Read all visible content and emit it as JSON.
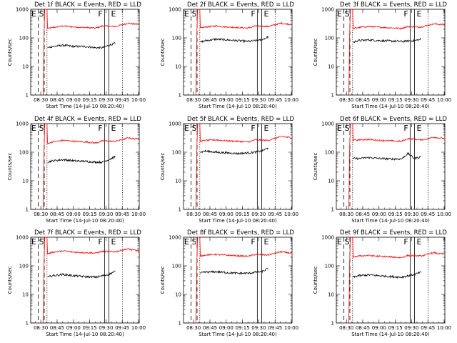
{
  "shared": {
    "xlabel": "Start Time (14-Jul-10 08:20:40)",
    "ylabel": "Counts/sec",
    "x_tick_labels": [
      "08:30",
      "08:45",
      "09:00",
      "09:15",
      "09:30",
      "09:45",
      "10:00"
    ],
    "y_tick_labels": [
      "1",
      "10",
      "100",
      "1000"
    ],
    "markers": {
      "E": "E",
      "S": "S",
      "F": "F"
    },
    "colors": {
      "events": "#000000",
      "lld": "#ff0000"
    }
  },
  "chart_data": [
    {
      "type": "line",
      "title": "Det 1f BLACK = Events, RED = LLD",
      "x_axis": "minutes after 08:20:40",
      "xlim": [
        0,
        100
      ],
      "ylim": [
        1,
        1000
      ],
      "yscale": "log",
      "series": [
        {
          "name": "Events",
          "x": [
            15.5,
            20,
            30,
            40,
            50,
            60,
            66,
            72,
            78
          ],
          "y": [
            45,
            50,
            55,
            50,
            50,
            45,
            45,
            55,
            65
          ]
        },
        {
          "name": "LLD",
          "x": [
            15.5,
            20,
            30,
            40,
            50,
            60,
            66,
            78,
            85,
            90,
            93,
            100
          ],
          "y": [
            210,
            230,
            260,
            240,
            230,
            220,
            260,
            250,
            290,
            330,
            310,
            300
          ]
        }
      ],
      "vertical_markers": {
        "dashed": [
          7,
          12.5
        ],
        "dotted": [
          15,
          84.5
        ],
        "solid": [
          68,
          72
        ]
      }
    },
    {
      "type": "line",
      "title": "Det 2f BLACK = Events, RED = LLD",
      "x_axis": "minutes after 08:20:40",
      "xlim": [
        0,
        100
      ],
      "ylim": [
        1,
        1000
      ],
      "yscale": "log",
      "series": [
        {
          "name": "Events",
          "x": [
            15.5,
            20,
            30,
            40,
            50,
            60,
            66,
            72,
            78
          ],
          "y": [
            70,
            80,
            90,
            85,
            80,
            75,
            80,
            85,
            110
          ]
        },
        {
          "name": "LLD",
          "x": [
            15.5,
            20,
            30,
            40,
            50,
            60,
            66,
            78,
            85,
            90,
            93,
            100
          ],
          "y": [
            220,
            240,
            260,
            240,
            230,
            220,
            260,
            250,
            290,
            330,
            310,
            300
          ]
        }
      ],
      "vertical_markers": {
        "dashed": [
          7,
          12.5
        ],
        "dotted": [
          15,
          84.5
        ],
        "solid": [
          68,
          72
        ]
      }
    },
    {
      "type": "line",
      "title": "Det 3f BLACK = Events, RED = LLD",
      "x_axis": "minutes after 08:20:40",
      "xlim": [
        0,
        100
      ],
      "ylim": [
        1,
        1000
      ],
      "yscale": "log",
      "series": [
        {
          "name": "Events",
          "x": [
            15.5,
            20,
            30,
            40,
            50,
            60,
            66,
            72,
            78
          ],
          "y": [
            70,
            80,
            85,
            80,
            78,
            75,
            78,
            80,
            90
          ]
        },
        {
          "name": "LLD",
          "x": [
            15.5,
            20,
            30,
            40,
            50,
            60,
            66,
            78,
            85,
            90,
            93,
            100
          ],
          "y": [
            210,
            230,
            250,
            235,
            225,
            215,
            250,
            240,
            280,
            310,
            300,
            290
          ]
        }
      ],
      "vertical_markers": {
        "dashed": [
          7,
          12.5
        ],
        "dotted": [
          15,
          84.5
        ],
        "solid": [
          68,
          72
        ]
      }
    },
    {
      "type": "line",
      "title": "Det 4f BLACK = Events, RED = LLD",
      "x_axis": "minutes after 08:20:40",
      "xlim": [
        0,
        100
      ],
      "ylim": [
        1,
        1000
      ],
      "yscale": "log",
      "series": [
        {
          "name": "Events",
          "x": [
            15.5,
            20,
            30,
            40,
            50,
            60,
            66,
            72,
            78
          ],
          "y": [
            45,
            50,
            55,
            50,
            48,
            45,
            45,
            55,
            70
          ]
        },
        {
          "name": "LLD",
          "x": [
            15.5,
            20,
            30,
            40,
            50,
            60,
            66,
            78,
            85,
            90,
            93,
            100
          ],
          "y": [
            200,
            230,
            260,
            240,
            230,
            210,
            250,
            240,
            280,
            320,
            300,
            290
          ]
        }
      ],
      "vertical_markers": {
        "dashed": [
          7,
          12.5
        ],
        "dotted": [
          15,
          84.5
        ],
        "solid": [
          68,
          72
        ]
      }
    },
    {
      "type": "line",
      "title": "Det 5f BLACK = Events, RED = LLD",
      "x_axis": "minutes after 08:20:40",
      "xlim": [
        0,
        100
      ],
      "ylim": [
        1,
        1000
      ],
      "yscale": "log",
      "series": [
        {
          "name": "Events",
          "x": [
            15.5,
            20,
            30,
            40,
            50,
            60,
            66,
            72,
            78
          ],
          "y": [
            100,
            110,
            100,
            95,
            90,
            95,
            100,
            110,
            140
          ]
        },
        {
          "name": "LLD",
          "x": [
            15.5,
            20,
            30,
            40,
            50,
            60,
            66,
            78,
            85,
            90,
            93,
            100
          ],
          "y": [
            240,
            260,
            270,
            250,
            240,
            230,
            270,
            260,
            310,
            360,
            340,
            320
          ]
        }
      ],
      "vertical_markers": {
        "dashed": [
          7,
          12.5
        ],
        "dotted": [
          15,
          84.5
        ],
        "solid": [
          68,
          72
        ]
      }
    },
    {
      "type": "line",
      "title": "Det 6f BLACK = Events, RED = LLD",
      "x_axis": "minutes after 08:20:40",
      "xlim": [
        0,
        100
      ],
      "ylim": [
        1,
        1000
      ],
      "yscale": "log",
      "series": [
        {
          "name": "Events",
          "x": [
            15.5,
            20,
            30,
            40,
            50,
            60,
            66,
            72,
            78
          ],
          "y": [
            60,
            60,
            65,
            60,
            58,
            58,
            90,
            60,
            70
          ]
        },
        {
          "name": "LLD",
          "x": [
            15.5,
            20,
            30,
            40,
            50,
            60,
            66,
            78,
            85,
            90,
            93,
            100
          ],
          "y": [
            260,
            270,
            280,
            260,
            250,
            240,
            300,
            270,
            300,
            340,
            320,
            300
          ]
        }
      ],
      "vertical_markers": {
        "dashed": [
          7,
          12.5
        ],
        "dotted": [
          15,
          84.5
        ],
        "solid": [
          68,
          72
        ]
      }
    },
    {
      "type": "line",
      "title": "Det 7f BLACK = Events, RED = LLD",
      "x_axis": "minutes after 08:20:40",
      "xlim": [
        0,
        100
      ],
      "ylim": [
        1,
        1000
      ],
      "yscale": "log",
      "series": [
        {
          "name": "Events",
          "x": [
            15.5,
            20,
            30,
            40,
            50,
            60,
            66,
            72,
            78
          ],
          "y": [
            40,
            45,
            50,
            45,
            42,
            40,
            45,
            50,
            65
          ]
        },
        {
          "name": "LLD",
          "x": [
            15.5,
            20,
            30,
            40,
            50,
            60,
            66,
            78,
            85,
            90,
            93,
            100
          ],
          "y": [
            260,
            300,
            330,
            300,
            290,
            280,
            320,
            310,
            360,
            390,
            360,
            340
          ]
        }
      ],
      "vertical_markers": {
        "dashed": [
          7,
          12.5
        ],
        "dotted": [
          15,
          84.5
        ],
        "solid": [
          68,
          72
        ]
      }
    },
    {
      "type": "line",
      "title": "Det 8f BLACK = Events, RED = LLD",
      "x_axis": "minutes after 08:20:40",
      "xlim": [
        0,
        100
      ],
      "ylim": [
        1,
        1000
      ],
      "yscale": "log",
      "series": [
        {
          "name": "Events",
          "x": [
            15.5,
            20,
            30,
            40,
            50,
            60,
            66,
            72,
            78
          ],
          "y": [
            55,
            60,
            62,
            58,
            55,
            55,
            60,
            62,
            80
          ]
        },
        {
          "name": "LLD",
          "x": [
            15.5,
            20,
            30,
            40,
            50,
            60,
            66,
            78,
            85,
            90,
            93,
            100
          ],
          "y": [
            220,
            240,
            250,
            235,
            225,
            215,
            250,
            240,
            280,
            310,
            295,
            280
          ]
        }
      ],
      "vertical_markers": {
        "dashed": [
          7,
          12.5
        ],
        "dotted": [
          15,
          84.5
        ],
        "solid": [
          68,
          72
        ]
      }
    },
    {
      "type": "line",
      "title": "Det 9f BLACK = Events, RED = LLD",
      "x_axis": "minutes after 08:20:40",
      "xlim": [
        0,
        100
      ],
      "ylim": [
        1,
        1000
      ],
      "yscale": "log",
      "series": [
        {
          "name": "Events",
          "x": [
            15.5,
            20,
            30,
            40,
            50,
            60,
            66,
            72,
            78
          ],
          "y": [
            40,
            45,
            48,
            45,
            42,
            40,
            45,
            50,
            60
          ]
        },
        {
          "name": "LLD",
          "x": [
            15.5,
            20,
            30,
            40,
            50,
            60,
            66,
            78,
            85,
            90,
            93,
            100
          ],
          "y": [
            200,
            220,
            230,
            215,
            205,
            195,
            230,
            220,
            260,
            290,
            270,
            260
          ]
        }
      ],
      "vertical_markers": {
        "dashed": [
          7,
          12.5
        ],
        "dotted": [
          15,
          84.5
        ],
        "solid": [
          68,
          72
        ]
      }
    }
  ]
}
